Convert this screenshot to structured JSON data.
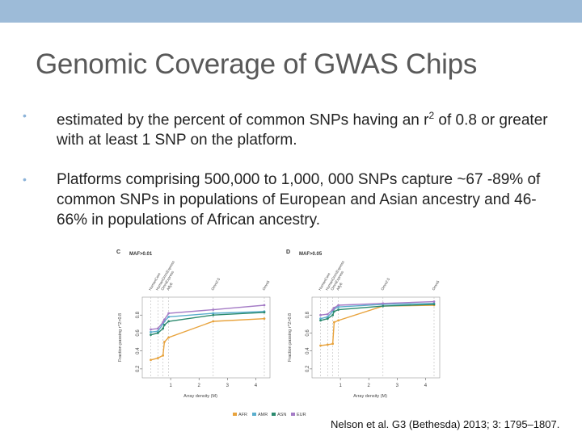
{
  "slide": {
    "title": "Genomic Coverage of GWAS Chips",
    "bullets": [
      {
        "pre": "estimated by the percent of common SNPs having an r",
        "sup": "2",
        "post": " of 0.8 or greater with at least 1 SNP on the platform."
      },
      {
        "text": "Platforms comprising 500,000 to 1,000, 000 SNPs capture ~67 -89% of common SNPs in populations of European and Asian ancestry and 46-66% in populations of African ancestry."
      }
    ],
    "citation": "Nelson et al. G3 (Bethesda) 2013; 3: 1795–1807.",
    "colors": {
      "topbar": "#9dbbd8",
      "title": "#595959",
      "bullet_dot": "#8cb3d9"
    }
  },
  "chart_data": [
    {
      "panel": "C",
      "type": "line",
      "subtitle": "MAF>0.01",
      "xlabel": "Array density (M)",
      "ylabel": "Fraction passing r^2>0.8",
      "xlim": [
        0,
        4.5
      ],
      "ylim": [
        0.1,
        1.0
      ],
      "xticks": [
        1,
        2,
        3,
        4
      ],
      "yticks": [
        0.2,
        0.4,
        0.6,
        0.8
      ],
      "platform_labels": [
        "HumanCore",
        "HumanOmniExpress",
        "OmniExpress",
        "Affy6",
        "Omni2.5",
        "Omni5"
      ],
      "platform_x": [
        0.3,
        0.55,
        0.73,
        0.93,
        2.5,
        4.3
      ],
      "series": [
        {
          "name": "AFR",
          "color": "#e8a33d",
          "x": [
            0.3,
            0.55,
            0.73,
            0.78,
            0.93,
            2.5,
            4.3
          ],
          "y": [
            0.3,
            0.32,
            0.35,
            0.5,
            0.55,
            0.73,
            0.76
          ]
        },
        {
          "name": "AMR",
          "color": "#5aaecd",
          "x": [
            0.3,
            0.55,
            0.73,
            0.78,
            0.93,
            2.5,
            4.3
          ],
          "y": [
            0.61,
            0.62,
            0.7,
            0.73,
            0.78,
            0.82,
            0.84
          ]
        },
        {
          "name": "ASN",
          "color": "#2b8a6e",
          "x": [
            0.3,
            0.55,
            0.73,
            0.78,
            0.93,
            2.5,
            4.3
          ],
          "y": [
            0.58,
            0.6,
            0.65,
            0.69,
            0.73,
            0.8,
            0.83
          ]
        },
        {
          "name": "EUR",
          "color": "#a57cc6",
          "x": [
            0.3,
            0.55,
            0.73,
            0.78,
            0.93,
            2.5,
            4.3
          ],
          "y": [
            0.64,
            0.65,
            0.72,
            0.75,
            0.82,
            0.86,
            0.91
          ]
        }
      ]
    },
    {
      "panel": "D",
      "type": "line",
      "subtitle": "MAF>0.05",
      "xlabel": "Array density (M)",
      "ylabel": "Fraction passing r^2>0.8",
      "xlim": [
        0,
        4.5
      ],
      "ylim": [
        0.1,
        1.0
      ],
      "xticks": [
        1,
        2,
        3,
        4
      ],
      "yticks": [
        0.2,
        0.4,
        0.6,
        0.8
      ],
      "platform_labels": [
        "HumanCore",
        "HumanOmniExpress",
        "OmniExpress",
        "Affy6",
        "Omni2.5",
        "Omni5"
      ],
      "platform_x": [
        0.3,
        0.55,
        0.73,
        0.93,
        2.5,
        4.3
      ],
      "series": [
        {
          "name": "AFR",
          "color": "#e8a33d",
          "x": [
            0.3,
            0.55,
            0.73,
            0.78,
            0.93,
            2.5,
            4.3
          ],
          "y": [
            0.46,
            0.47,
            0.48,
            0.72,
            0.74,
            0.9,
            0.91
          ]
        },
        {
          "name": "AMR",
          "color": "#5aaecd",
          "x": [
            0.3,
            0.55,
            0.73,
            0.78,
            0.93,
            2.5,
            4.3
          ],
          "y": [
            0.76,
            0.78,
            0.84,
            0.87,
            0.89,
            0.92,
            0.93
          ]
        },
        {
          "name": "ASN",
          "color": "#2b8a6e",
          "x": [
            0.3,
            0.55,
            0.73,
            0.78,
            0.93,
            2.5,
            4.3
          ],
          "y": [
            0.74,
            0.76,
            0.8,
            0.84,
            0.86,
            0.9,
            0.92
          ]
        },
        {
          "name": "EUR",
          "color": "#a57cc6",
          "x": [
            0.3,
            0.55,
            0.73,
            0.78,
            0.93,
            2.5,
            4.3
          ],
          "y": [
            0.8,
            0.81,
            0.86,
            0.88,
            0.91,
            0.93,
            0.95
          ]
        }
      ]
    }
  ]
}
